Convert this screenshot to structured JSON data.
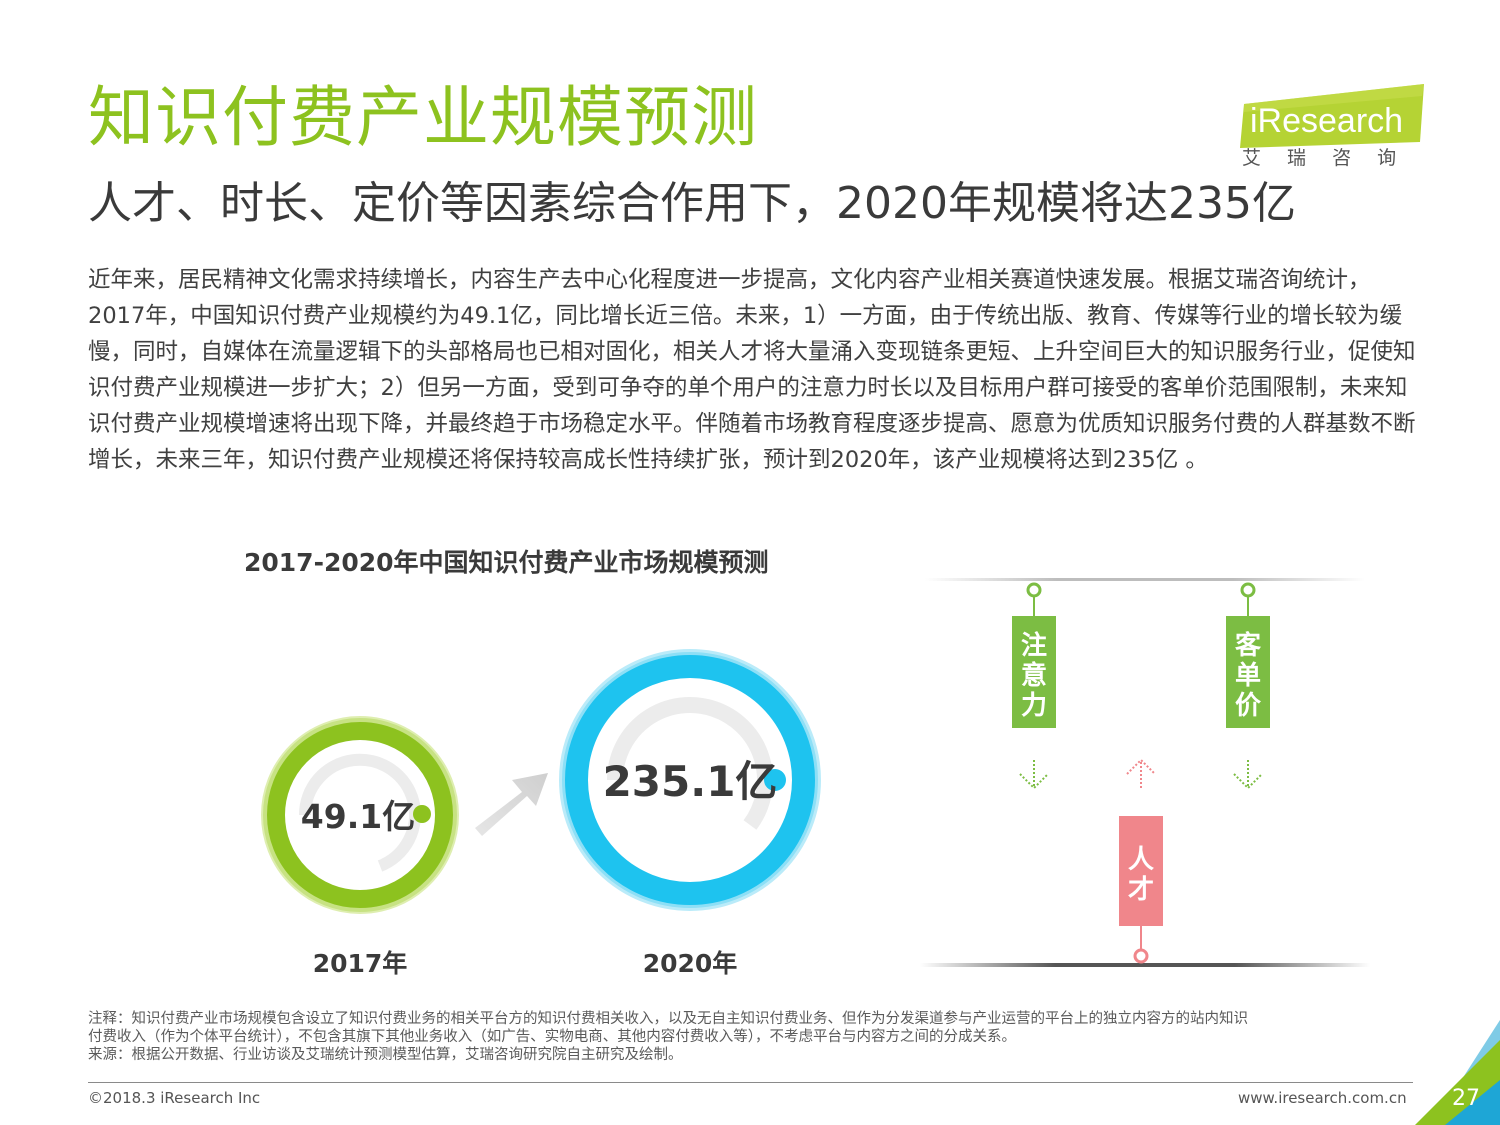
{
  "title": "知识付费产业规模预测",
  "subtitle": "人才、时长、定价等因素综合作用下，2020年规模将达235亿",
  "logo": {
    "brand": "iResearch",
    "cn": "艾 瑞 咨 询"
  },
  "paragraph": "近年来，居民精神文化需求持续增长，内容生产去中心化程度进一步提高，文化内容产业相关赛道快速发展。根据艾瑞咨询统计，2017年，中国知识付费产业规模约为49.1亿，同比增长近三倍。未来，1）一方面，由于传统出版、教育、传媒等行业的增长较为缓慢，同时，自媒体在流量逻辑下的头部格局也已相对固化，相关人才将大量涌入变现链条更短、上升空间巨大的知识服务行业，促使知识付费产业规模进一步扩大；2）但另一方面，受到可争夺的单个用户的注意力时长以及目标用户群可接受的客单价范围限制，未来知识付费产业规模增速将出现下降，并最终趋于市场稳定水平。伴随着市场教育程度逐步提高、愿意为优质知识服务付费的人群基数不断增长，未来三年，知识付费产业规模还将保持较高成长性持续扩张，预计到2020年，该产业规模将达到235亿 。",
  "chart_data": {
    "type": "bubble",
    "title": "2017-2020年中国知识付费产业市场规模预测",
    "categories": [
      "2017年",
      "2020年"
    ],
    "values": [
      49.1,
      235.1
    ],
    "value_labels": [
      "49.1亿",
      "235.1亿"
    ],
    "colors": [
      "#8dc21f",
      "#1ec3ef"
    ]
  },
  "factors": {
    "attention": "注意力",
    "price": "客单价",
    "talent": "人才",
    "green": "#7cbd43",
    "red": "#f0868b"
  },
  "note_lines": [
    "注释：知识付费产业市场规模包含设立了知识付费业务的相关平台方的知识付费相关收入，以及无自主知识付费业务、但作为分发渠道参与产业运营的平台上的独立内容方的站内知识",
    "付费收入（作为个体平台统计），不包含其旗下其他业务收入（如广告、实物电商、其他内容付费收入等），不考虑平台与内容方之间的分成关系。",
    "来源：根据公开数据、行业访谈及艾瑞统计预测模型估算，艾瑞咨询研究院自主研究及绘制。"
  ],
  "footer": {
    "copyright": "©2018.3 iResearch Inc",
    "website": "www.iresearch.com.cn",
    "page": "27"
  }
}
